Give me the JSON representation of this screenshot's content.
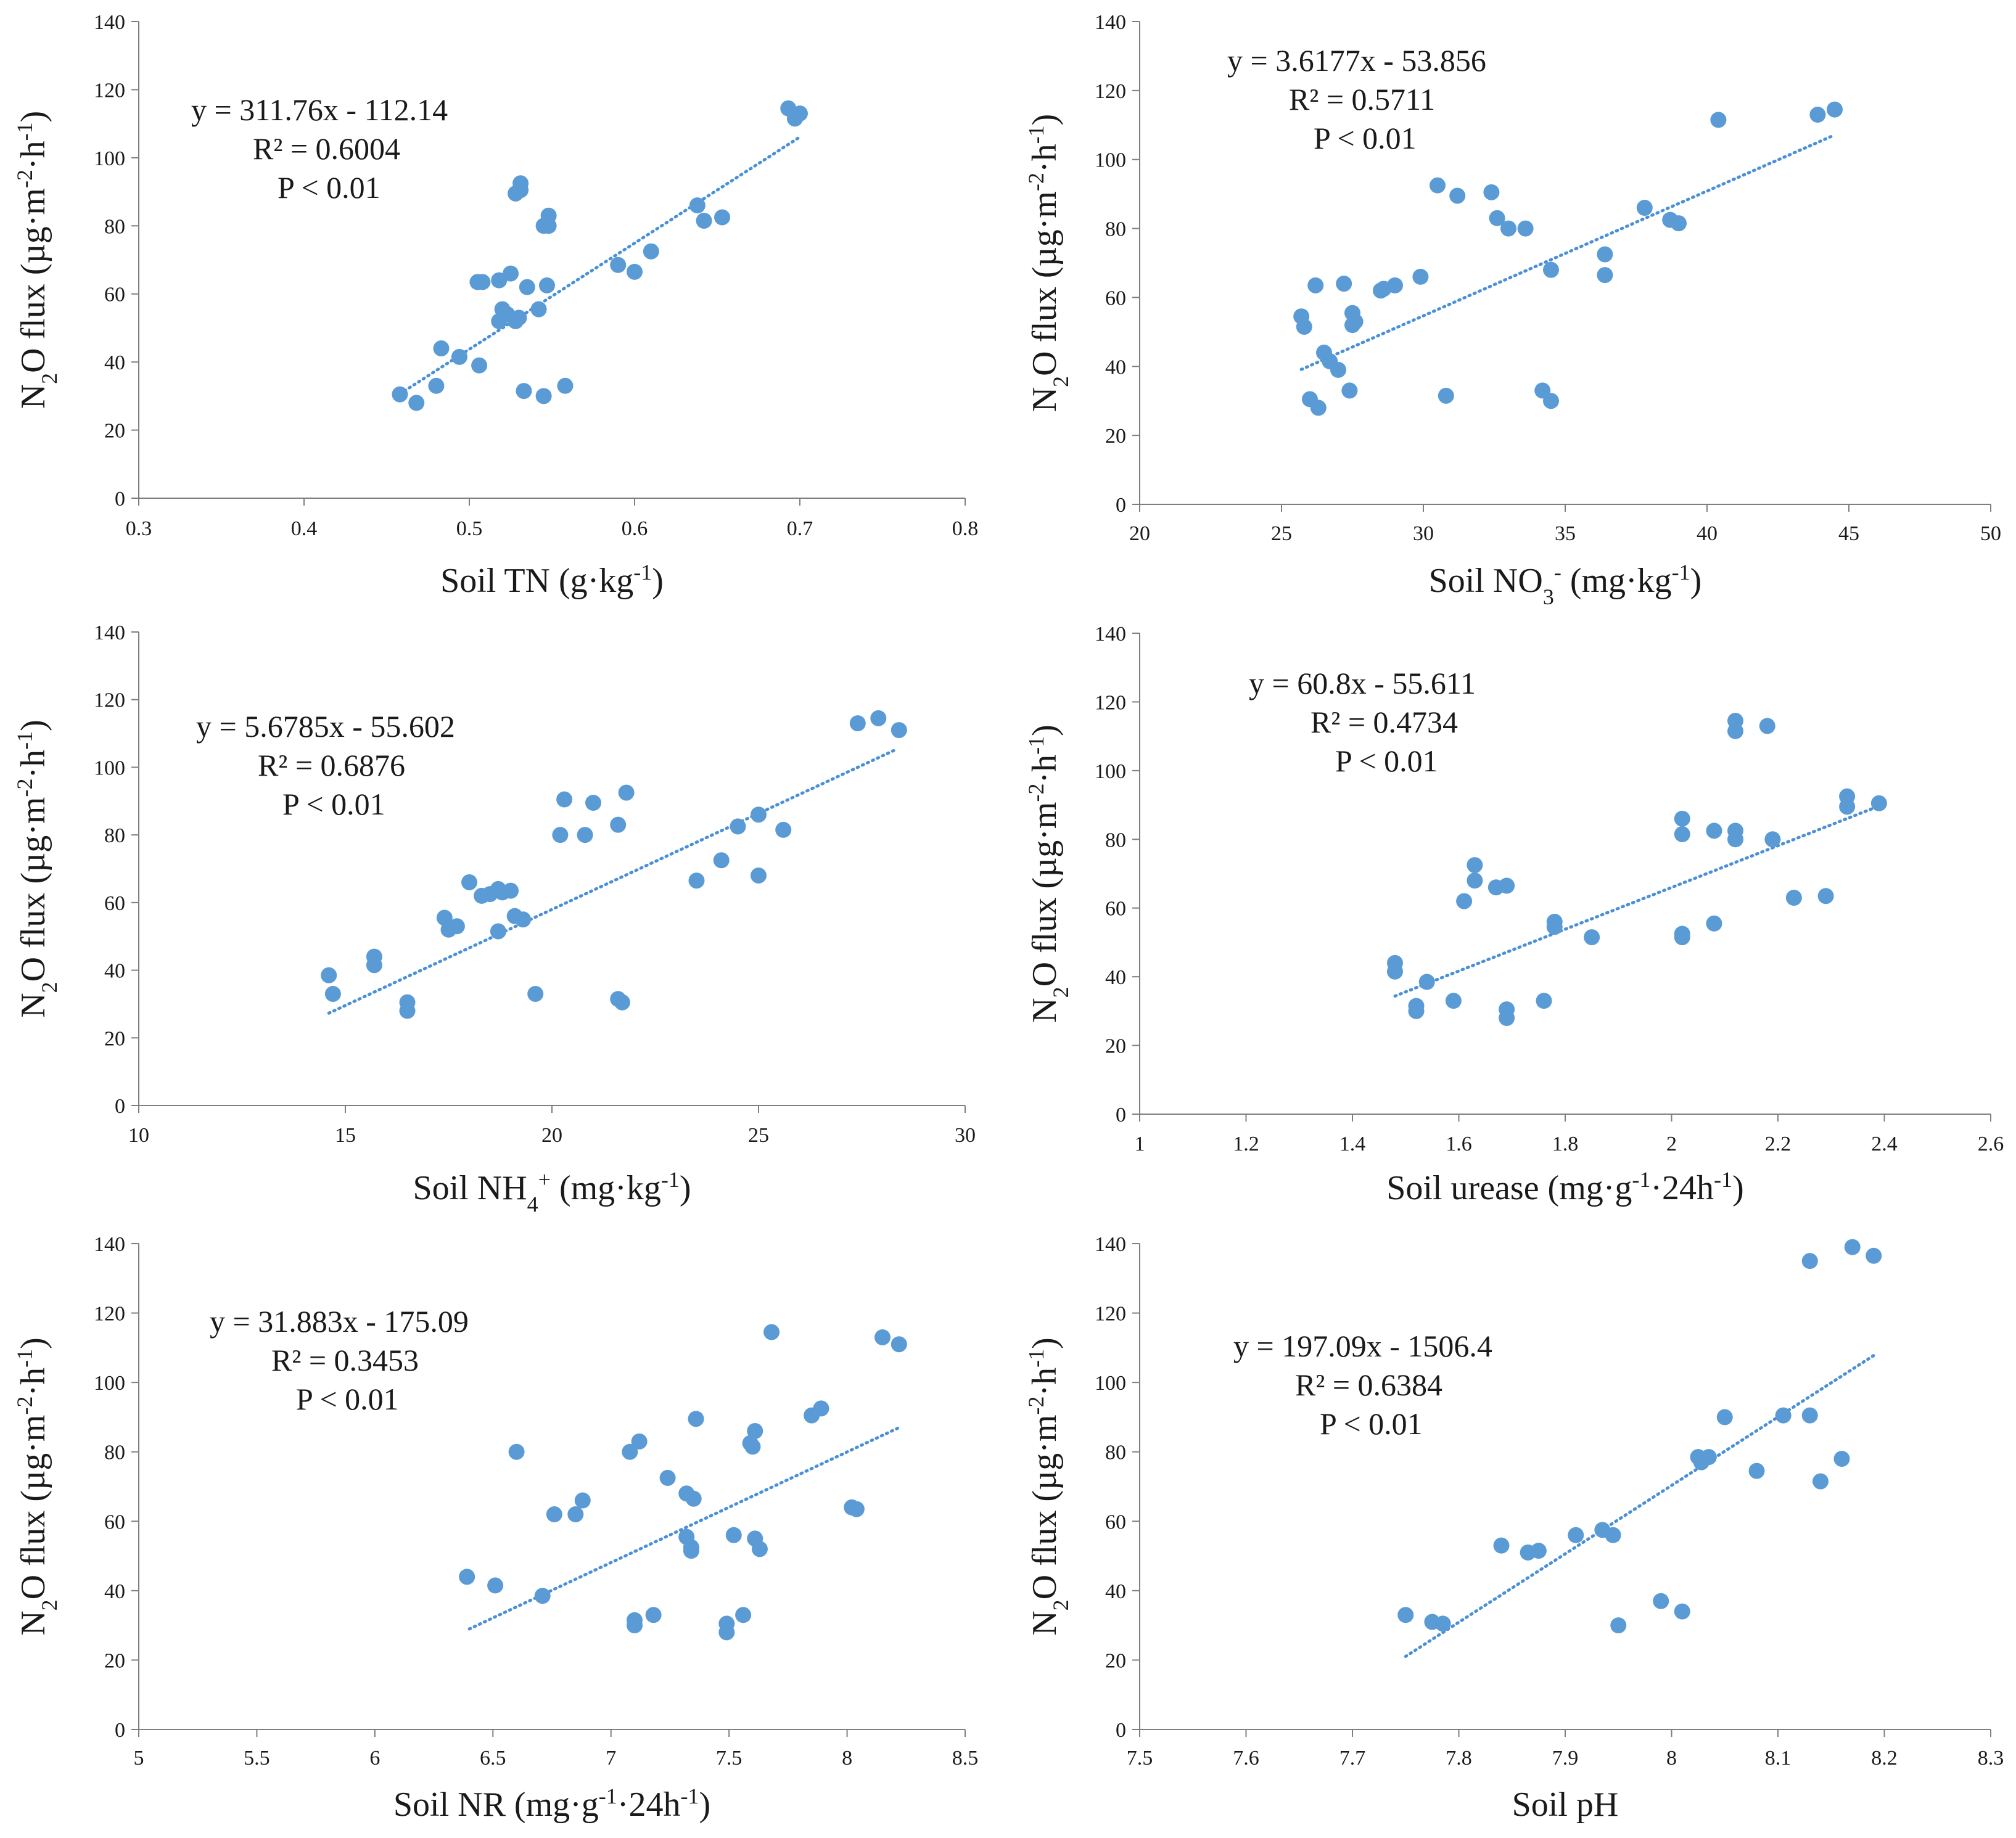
{
  "figure": {
    "marker_color": "#5B9BD5",
    "trend_color": "#4A90D9",
    "axis_color": "#7f7f7f"
  },
  "chart_data": [
    {
      "type": "scatter",
      "id": "tn",
      "title": "",
      "xlabel": {
        "base": "Soil TN (g·kg",
        "sup": "-1",
        "tail": ")"
      },
      "ylabel": {
        "lead": "N",
        "sub1": "2",
        "mid": "O flux (µg·m",
        "sup1": "-2",
        "mid2": "·h",
        "sup2": "-1",
        "tail": ")"
      },
      "xlim": [
        0.3,
        0.8
      ],
      "ylim": [
        0,
        140
      ],
      "xticks": [
        0.3,
        0.4,
        0.5,
        0.6,
        0.7,
        0.8
      ],
      "xtick_labels": [
        "0.3",
        "0.4",
        "0.5",
        "0.6",
        "0.7",
        "0.8"
      ],
      "yticks": [
        0,
        20,
        40,
        60,
        80,
        100,
        120,
        140
      ],
      "ytick_labels": [
        "0",
        "20",
        "40",
        "60",
        "80",
        "100",
        "120",
        "140"
      ],
      "equation": "y = 311.76x - 112.14",
      "r2": "R² = 0.6004",
      "p": "P < 0.01",
      "trend": {
        "slope": 311.76,
        "intercept": -112.14,
        "x0": 0.458,
        "x1": 0.7
      },
      "points": [
        [
          0.458,
          30.5
        ],
        [
          0.468,
          28
        ],
        [
          0.48,
          33
        ],
        [
          0.483,
          44
        ],
        [
          0.494,
          41.5
        ],
        [
          0.506,
          39
        ],
        [
          0.505,
          63.5
        ],
        [
          0.508,
          63.5
        ],
        [
          0.518,
          64
        ],
        [
          0.518,
          52
        ],
        [
          0.52,
          55.5
        ],
        [
          0.523,
          54
        ],
        [
          0.525,
          66
        ],
        [
          0.528,
          52
        ],
        [
          0.53,
          53
        ],
        [
          0.533,
          31.5
        ],
        [
          0.535,
          62
        ],
        [
          0.542,
          55.5
        ],
        [
          0.545,
          30
        ],
        [
          0.547,
          62.5
        ],
        [
          0.528,
          89.5
        ],
        [
          0.531,
          90.5
        ],
        [
          0.531,
          92.5
        ],
        [
          0.545,
          80
        ],
        [
          0.548,
          83
        ],
        [
          0.548,
          80
        ],
        [
          0.558,
          33
        ],
        [
          0.59,
          68.5
        ],
        [
          0.6,
          66.5
        ],
        [
          0.61,
          72.5
        ],
        [
          0.638,
          86
        ],
        [
          0.642,
          81.5
        ],
        [
          0.653,
          82.5
        ],
        [
          0.693,
          114.5
        ],
        [
          0.697,
          111.5
        ],
        [
          0.7,
          113
        ]
      ]
    },
    {
      "type": "scatter",
      "id": "no3",
      "title": "",
      "xlabel": {
        "base": "Soil NO",
        "sub": "3",
        "sup": "-",
        "tail": " (mg·kg",
        "sup2": "-1",
        "tail2": ")"
      },
      "ylabel": {
        "lead": "N",
        "sub1": "2",
        "mid": "O flux (µg·m",
        "sup1": "-2",
        "mid2": "·h",
        "sup2": "-1",
        "tail": ")"
      },
      "xlim": [
        20,
        50
      ],
      "ylim": [
        0,
        140
      ],
      "xticks": [
        20,
        25,
        30,
        35,
        40,
        45,
        50
      ],
      "xtick_labels": [
        "20",
        "25",
        "30",
        "35",
        "40",
        "45",
        "50"
      ],
      "yticks": [
        0,
        20,
        40,
        60,
        80,
        100,
        120,
        140
      ],
      "ytick_labels": [
        "0",
        "20",
        "40",
        "60",
        "80",
        "100",
        "120",
        "140"
      ],
      "equation": "y = 3.6177x - 53.856",
      "r2": "R² = 0.5711",
      "p": "P < 0.01",
      "trend": {
        "slope": 3.6177,
        "intercept": -53.856,
        "x0": 25.7,
        "x1": 44.5
      },
      "points": [
        [
          25.7,
          54.5
        ],
        [
          25.8,
          51.5
        ],
        [
          26.0,
          30.5
        ],
        [
          26.2,
          63.5
        ],
        [
          26.3,
          28
        ],
        [
          26.5,
          44
        ],
        [
          26.7,
          41.5
        ],
        [
          27.0,
          39
        ],
        [
          27.2,
          64
        ],
        [
          27.4,
          33
        ],
        [
          27.5,
          55.5
        ],
        [
          27.5,
          52
        ],
        [
          27.6,
          53
        ],
        [
          28.5,
          62
        ],
        [
          28.6,
          62.5
        ],
        [
          29.0,
          63.5
        ],
        [
          29.9,
          66
        ],
        [
          30.5,
          92.5
        ],
        [
          30.8,
          31.5
        ],
        [
          31.2,
          89.5
        ],
        [
          32.4,
          90.5
        ],
        [
          32.6,
          83
        ],
        [
          33.0,
          80
        ],
        [
          33.6,
          80
        ],
        [
          34.2,
          33
        ],
        [
          34.5,
          30
        ],
        [
          34.5,
          68
        ],
        [
          36.4,
          72.5
        ],
        [
          36.4,
          66.5
        ],
        [
          37.8,
          86
        ],
        [
          38.7,
          82.5
        ],
        [
          39.0,
          81.5
        ],
        [
          40.4,
          111.5
        ],
        [
          43.9,
          113
        ],
        [
          44.5,
          114.5
        ]
      ]
    },
    {
      "type": "scatter",
      "id": "nh4",
      "title": "",
      "xlabel": {
        "base": "Soil NH",
        "sub": "4",
        "sup": "+",
        "tail": " (mg·kg",
        "sup2": "-1",
        "tail2": ")"
      },
      "ylabel": {
        "lead": "N",
        "sub1": "2",
        "mid": "O flux (µg·m",
        "sup1": "-2",
        "mid2": "·h",
        "sup2": "-1",
        "tail": ")"
      },
      "xlim": [
        10,
        30
      ],
      "ylim": [
        0,
        140
      ],
      "xticks": [
        10,
        15,
        20,
        25,
        30
      ],
      "xtick_labels": [
        "10",
        "15",
        "20",
        "25",
        "30"
      ],
      "yticks": [
        0,
        20,
        40,
        60,
        80,
        100,
        120,
        140
      ],
      "ytick_labels": [
        "0",
        "20",
        "40",
        "60",
        "80",
        "100",
        "120",
        "140"
      ],
      "equation": "y = 5.6785x - 55.602",
      "r2": "R² = 0.6876",
      "p": "P < 0.01",
      "trend": {
        "slope": 5.6785,
        "intercept": -55.602,
        "x0": 14.6,
        "x1": 28.3
      },
      "points": [
        [
          14.6,
          38.5
        ],
        [
          14.7,
          33
        ],
        [
          15.7,
          44
        ],
        [
          15.7,
          41.5
        ],
        [
          16.5,
          30.5
        ],
        [
          16.5,
          28
        ],
        [
          17.4,
          55.5
        ],
        [
          17.5,
          52
        ],
        [
          17.7,
          53
        ],
        [
          18.0,
          66
        ],
        [
          18.3,
          62
        ],
        [
          18.5,
          62.5
        ],
        [
          18.7,
          64
        ],
        [
          18.7,
          51.5
        ],
        [
          18.8,
          63
        ],
        [
          19.0,
          63.5
        ],
        [
          19.1,
          56
        ],
        [
          19.3,
          55
        ],
        [
          19.6,
          33
        ],
        [
          20.2,
          80
        ],
        [
          20.3,
          90.5
        ],
        [
          20.8,
          80
        ],
        [
          21.0,
          89.5
        ],
        [
          21.6,
          83
        ],
        [
          21.6,
          31.5
        ],
        [
          21.7,
          30.5
        ],
        [
          21.8,
          92.5
        ],
        [
          23.5,
          66.5
        ],
        [
          24.1,
          72.5
        ],
        [
          24.5,
          82.5
        ],
        [
          25.0,
          86
        ],
        [
          25.0,
          68
        ],
        [
          25.6,
          81.5
        ],
        [
          27.4,
          113
        ],
        [
          27.9,
          114.5
        ],
        [
          28.4,
          111
        ]
      ]
    },
    {
      "type": "scatter",
      "id": "urease",
      "title": "",
      "xlabel": {
        "base": "Soil urease (mg·g",
        "sup": "-1",
        "tail": "·24h",
        "sup2": "-1",
        "tail2": ")"
      },
      "ylabel": {
        "lead": "N",
        "sub1": "2",
        "mid": "O flux (µg·m",
        "sup1": "-2",
        "mid2": "·h",
        "sup2": "-1",
        "tail": ")"
      },
      "xlim": [
        1,
        2.6
      ],
      "ylim": [
        0,
        140
      ],
      "xticks": [
        1,
        1.2,
        1.4,
        1.6,
        1.8,
        2,
        2.2,
        2.4,
        2.6
      ],
      "xtick_labels": [
        "1",
        "1.2",
        "1.4",
        "1.6",
        "1.8",
        "2",
        "2.2",
        "2.4",
        "2.6"
      ],
      "yticks": [
        0,
        20,
        40,
        60,
        80,
        100,
        120,
        140
      ],
      "ytick_labels": [
        "0",
        "20",
        "40",
        "60",
        "80",
        "100",
        "120",
        "140"
      ],
      "equation": "y = 60.8x - 55.611",
      "r2": "R² = 0.4734",
      "p": "P < 0.01",
      "trend": {
        "slope": 60.8,
        "intercept": -55.611,
        "x0": 1.48,
        "x1": 2.39
      },
      "points": [
        [
          1.48,
          44
        ],
        [
          1.48,
          41.5
        ],
        [
          1.52,
          31.5
        ],
        [
          1.52,
          30
        ],
        [
          1.54,
          38.5
        ],
        [
          1.59,
          33
        ],
        [
          1.61,
          62
        ],
        [
          1.63,
          72.5
        ],
        [
          1.63,
          68
        ],
        [
          1.67,
          66
        ],
        [
          1.69,
          66.5
        ],
        [
          1.69,
          30.5
        ],
        [
          1.69,
          28
        ],
        [
          1.76,
          33
        ],
        [
          1.78,
          56
        ],
        [
          1.78,
          54.5
        ],
        [
          1.85,
          51.5
        ],
        [
          2.02,
          52.5
        ],
        [
          2.02,
          51.5
        ],
        [
          2.02,
          86
        ],
        [
          2.02,
          81.5
        ],
        [
          2.08,
          82.5
        ],
        [
          2.08,
          55.5
        ],
        [
          2.12,
          114.5
        ],
        [
          2.12,
          111.5
        ],
        [
          2.12,
          82.5
        ],
        [
          2.12,
          80
        ],
        [
          2.18,
          113
        ],
        [
          2.19,
          80
        ],
        [
          2.23,
          63
        ],
        [
          2.29,
          63.5
        ],
        [
          2.33,
          92.5
        ],
        [
          2.33,
          89.5
        ],
        [
          2.39,
          90.5
        ]
      ]
    },
    {
      "type": "scatter",
      "id": "nr",
      "title": "",
      "xlabel": {
        "base": "Soil NR (mg·g",
        "sup": "-1",
        "tail": "·24h",
        "sup2": "-1",
        "tail2": ")"
      },
      "ylabel": {
        "lead": "N",
        "sub1": "2",
        "mid": "O flux (µg·m",
        "sup1": "-2",
        "mid2": "·h",
        "sup2": "-1",
        "tail": ")"
      },
      "xlim": [
        5,
        8.5
      ],
      "ylim": [
        0,
        140
      ],
      "xticks": [
        5,
        5.5,
        6,
        6.5,
        7,
        7.5,
        8,
        8.5
      ],
      "xtick_labels": [
        "5",
        "5.5",
        "6",
        "6.5",
        "7",
        "7.5",
        "8",
        "8.5"
      ],
      "yticks": [
        0,
        20,
        40,
        60,
        80,
        100,
        120,
        140
      ],
      "ytick_labels": [
        "0",
        "20",
        "40",
        "60",
        "80",
        "100",
        "120",
        "140"
      ],
      "equation": "y = 31.883x - 175.09",
      "r2": "R² = 0.3453",
      "p": "P < 0.01",
      "trend": {
        "slope": 31.883,
        "intercept": -175.09,
        "x0": 6.4,
        "x1": 8.23
      },
      "points": [
        [
          6.39,
          44
        ],
        [
          6.51,
          41.5
        ],
        [
          6.6,
          80
        ],
        [
          6.71,
          38.5
        ],
        [
          6.76,
          62
        ],
        [
          6.85,
          62
        ],
        [
          6.88,
          66
        ],
        [
          7.08,
          80
        ],
        [
          7.1,
          31.5
        ],
        [
          7.1,
          30
        ],
        [
          7.12,
          83
        ],
        [
          7.18,
          33
        ],
        [
          7.24,
          72.5
        ],
        [
          7.32,
          68
        ],
        [
          7.32,
          55.5
        ],
        [
          7.34,
          52.5
        ],
        [
          7.34,
          51.5
        ],
        [
          7.35,
          66.5
        ],
        [
          7.36,
          89.5
        ],
        [
          7.49,
          30.5
        ],
        [
          7.49,
          28
        ],
        [
          7.52,
          56
        ],
        [
          7.56,
          33
        ],
        [
          7.59,
          82.5
        ],
        [
          7.6,
          81.5
        ],
        [
          7.61,
          86
        ],
        [
          7.61,
          55
        ],
        [
          7.63,
          52
        ],
        [
          7.68,
          114.5
        ],
        [
          7.85,
          90.5
        ],
        [
          7.89,
          92.5
        ],
        [
          8.02,
          64
        ],
        [
          8.04,
          63.5
        ],
        [
          8.15,
          113
        ],
        [
          8.22,
          111
        ]
      ]
    },
    {
      "type": "scatter",
      "id": "ph",
      "title": "",
      "xlabel": {
        "base": "Soil pH"
      },
      "ylabel": {
        "lead": "N",
        "sub1": "2",
        "mid": "O flux (µg·m",
        "sup1": "-2",
        "mid2": "·h",
        "sup2": "-1",
        "tail": ")"
      },
      "xlim": [
        7.5,
        8.3
      ],
      "ylim": [
        0,
        140
      ],
      "xticks": [
        7.5,
        7.6,
        7.7,
        7.8,
        7.9,
        8,
        8.1,
        8.2,
        8.3
      ],
      "xtick_labels": [
        "7.5",
        "7.6",
        "7.7",
        "7.8",
        "7.9",
        "8",
        "8.1",
        "8.2",
        "8.3"
      ],
      "yticks": [
        0,
        20,
        40,
        60,
        80,
        100,
        120,
        140
      ],
      "ytick_labels": [
        "0",
        "20",
        "40",
        "60",
        "80",
        "100",
        "120",
        "140"
      ],
      "equation": "y = 197.09x - 1506.4",
      "r2": "R² = 0.6384",
      "p": "P < 0.01",
      "trend": {
        "slope": 197.09,
        "intercept": -1506.4,
        "x0": 7.75,
        "x1": 8.19
      },
      "points": [
        [
          7.75,
          33
        ],
        [
          7.775,
          31
        ],
        [
          7.785,
          30.5
        ],
        [
          7.84,
          53
        ],
        [
          7.865,
          51
        ],
        [
          7.875,
          51.5
        ],
        [
          7.91,
          56
        ],
        [
          7.935,
          57.5
        ],
        [
          7.945,
          56
        ],
        [
          7.95,
          30
        ],
        [
          7.99,
          37
        ],
        [
          8.01,
          34
        ],
        [
          8.025,
          78.5
        ],
        [
          8.028,
          77
        ],
        [
          8.035,
          78.5
        ],
        [
          8.05,
          90
        ],
        [
          8.08,
          74.5
        ],
        [
          8.105,
          90.5
        ],
        [
          8.13,
          90.5
        ],
        [
          8.13,
          135
        ],
        [
          8.14,
          71.5
        ],
        [
          8.16,
          78
        ],
        [
          8.17,
          139
        ],
        [
          8.19,
          136.5
        ]
      ]
    }
  ]
}
